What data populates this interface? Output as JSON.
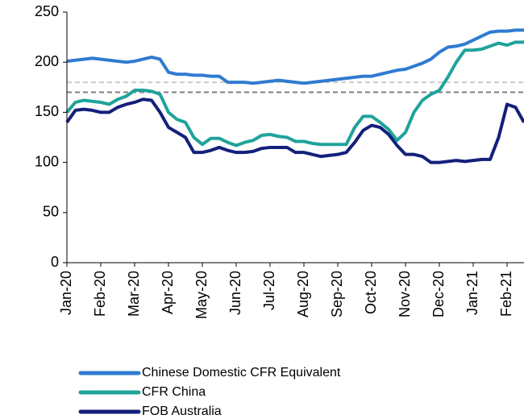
{
  "chart_data": {
    "type": "line",
    "categories": [
      "Jan-20",
      null,
      null,
      null,
      "Feb-20",
      null,
      null,
      null,
      "Mar-20",
      null,
      null,
      null,
      "Apr-20",
      null,
      null,
      null,
      "May-20",
      null,
      null,
      null,
      "Jun-20",
      null,
      null,
      null,
      "Jul-20",
      null,
      null,
      null,
      "Aug-20",
      null,
      null,
      null,
      "Sep-20",
      null,
      null,
      null,
      "Oct-20",
      null,
      null,
      null,
      "Nov-20",
      null,
      null,
      null,
      "Dec-20",
      null,
      null,
      null,
      "Jan-21",
      null,
      null,
      null,
      "Feb-21",
      null,
      null
    ],
    "series": [
      {
        "name": "Chinese Domestic CFR Equivalent",
        "color": "#2f7bd1",
        "values": [
          201,
          202,
          203,
          204,
          203,
          202,
          201,
          200,
          201,
          203,
          205,
          203,
          190,
          188,
          188,
          187,
          187,
          186,
          186,
          180,
          180,
          180,
          179,
          180,
          181,
          182,
          181,
          180,
          179,
          180,
          181,
          182,
          183,
          184,
          185,
          186,
          186,
          188,
          190,
          192,
          193,
          196,
          199,
          203,
          210,
          215,
          216,
          218,
          222,
          226,
          230,
          231,
          231,
          232,
          232
        ]
      },
      {
        "name": "CFR China",
        "color": "#1fa39a",
        "values": [
          150,
          160,
          162,
          161,
          160,
          158,
          163,
          166,
          172,
          172,
          171,
          168,
          150,
          143,
          140,
          125,
          118,
          124,
          124,
          120,
          117,
          120,
          122,
          127,
          128,
          126,
          125,
          121,
          121,
          119,
          118,
          118,
          118,
          118,
          135,
          146,
          146,
          140,
          133,
          122,
          130,
          150,
          162,
          168,
          172,
          185,
          200,
          212,
          212,
          213,
          216,
          219,
          217,
          220,
          220
        ]
      },
      {
        "name": "FOB Australia",
        "color": "#14207a",
        "values": [
          140,
          152,
          153,
          152,
          150,
          150,
          155,
          158,
          160,
          163,
          162,
          150,
          135,
          130,
          125,
          110,
          110,
          112,
          115,
          112,
          110,
          110,
          111,
          114,
          115,
          115,
          115,
          110,
          110,
          108,
          106,
          107,
          108,
          110,
          120,
          132,
          137,
          135,
          128,
          117,
          108,
          108,
          106,
          100,
          100,
          101,
          102,
          101,
          102,
          103,
          103,
          125,
          158,
          155,
          140
        ]
      }
    ],
    "reference_lines": [
      {
        "value": 180,
        "color": "#cccccc"
      },
      {
        "value": 170,
        "color": "#808080"
      }
    ],
    "ylim": [
      0,
      250
    ],
    "yticks": [
      0,
      50,
      100,
      150,
      200,
      250
    ]
  }
}
